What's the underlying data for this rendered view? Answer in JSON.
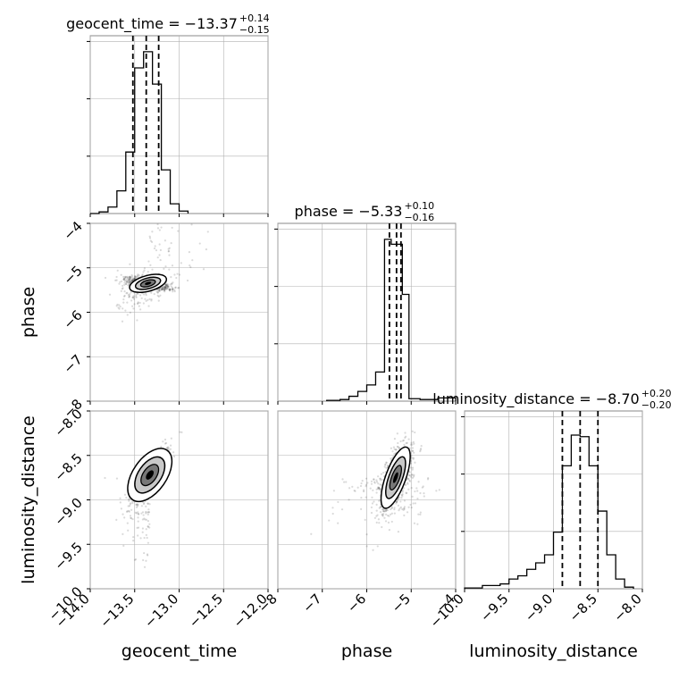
{
  "chart_data": {
    "type": "corner",
    "parameters": [
      "geocent_time",
      "phase",
      "luminosity_distance"
    ],
    "ranges": {
      "geocent_time": [
        -14.0,
        -12.0
      ],
      "phase": [
        -8,
        -4
      ],
      "luminosity_distance": [
        -10.0,
        -8.0
      ]
    },
    "ticks": {
      "geocent_time": [
        -14.0,
        -13.5,
        -13.0,
        -12.5,
        -12.0
      ],
      "phase": [
        -8,
        -7,
        -6,
        -5,
        -4
      ],
      "luminosity_distance": [
        -10.0,
        -9.5,
        -9.0,
        -8.5,
        -8.0
      ]
    },
    "tick_labels": {
      "geocent_time": [
        "−14.0",
        "−13.5",
        "−13.0",
        "−12.5",
        "−12.0"
      ],
      "phase": [
        "−8",
        "−7",
        "−6",
        "−5",
        "−4"
      ],
      "luminosity_distance": [
        "−10.0",
        "−9.5",
        "−9.0",
        "−8.5",
        "−8.0"
      ]
    },
    "y_tick_labels": {
      "phase": [
        "−4",
        "−5",
        "−6",
        "−7",
        "−8"
      ],
      "luminosity_distance": [
        "−8.0",
        "−8.5",
        "−9.0",
        "−9.5",
        "−10.0"
      ]
    },
    "xlabels": [
      "geocent_time",
      "phase",
      "luminosity_distance"
    ],
    "ylabels": [
      "phase",
      "luminosity_distance"
    ],
    "grid": true,
    "titles": [
      {
        "param": "geocent_time",
        "label": "geocent_time = −13.37",
        "upper": "+0.14",
        "lower": "−0.15"
      },
      {
        "param": "phase",
        "label": "phase = −5.33",
        "upper": "+0.10",
        "lower": "−0.16"
      },
      {
        "param": "luminosity_distance",
        "label": "luminosity_distance = −8.70",
        "upper": "+0.20",
        "lower": "−0.20"
      }
    ],
    "quantiles": {
      "geocent_time": [
        -13.52,
        -13.37,
        -13.23
      ],
      "phase": [
        -5.49,
        -5.33,
        -5.23
      ],
      "luminosity_distance": [
        -8.9,
        -8.7,
        -8.5
      ]
    },
    "histograms": {
      "geocent_time": {
        "edges": [
          -14.0,
          -13.9,
          -13.8,
          -13.7,
          -13.6,
          -13.5,
          -13.4,
          -13.3,
          -13.2,
          -13.1,
          -13.0,
          -12.9
        ],
        "counts": [
          0.0,
          0.01,
          0.04,
          0.14,
          0.38,
          0.9,
          1.0,
          0.8,
          0.27,
          0.06,
          0.015
        ]
      },
      "phase": {
        "edges": [
          -6.9,
          -6.6,
          -6.4,
          -6.2,
          -6.0,
          -5.8,
          -5.6,
          -5.45,
          -5.2,
          -5.05,
          -4.8,
          -4.4,
          -4.0
        ],
        "counts": [
          0.005,
          0.01,
          0.03,
          0.06,
          0.1,
          0.18,
          1.0,
          0.97,
          0.66,
          0.015,
          0.01,
          0.02
        ]
      },
      "luminosity_distance": {
        "edges": [
          -10.0,
          -9.8,
          -9.6,
          -9.5,
          -9.4,
          -9.3,
          -9.2,
          -9.1,
          -9.0,
          -8.9,
          -8.8,
          -8.7,
          -8.6,
          -8.5,
          -8.4,
          -8.3,
          -8.2,
          -8.1
        ],
        "counts": [
          0.005,
          0.02,
          0.03,
          0.06,
          0.08,
          0.12,
          0.16,
          0.21,
          0.35,
          0.76,
          0.95,
          0.94,
          0.76,
          0.48,
          0.21,
          0.06,
          0.01
        ]
      }
    },
    "pairs": [
      {
        "x": "geocent_time",
        "y": "phase",
        "center": [
          -13.35,
          -5.35
        ]
      },
      {
        "x": "geocent_time",
        "y": "luminosity_distance",
        "center": [
          -13.33,
          -8.72
        ]
      },
      {
        "x": "phase",
        "y": "luminosity_distance",
        "center": [
          -5.35,
          -8.75
        ]
      }
    ]
  }
}
